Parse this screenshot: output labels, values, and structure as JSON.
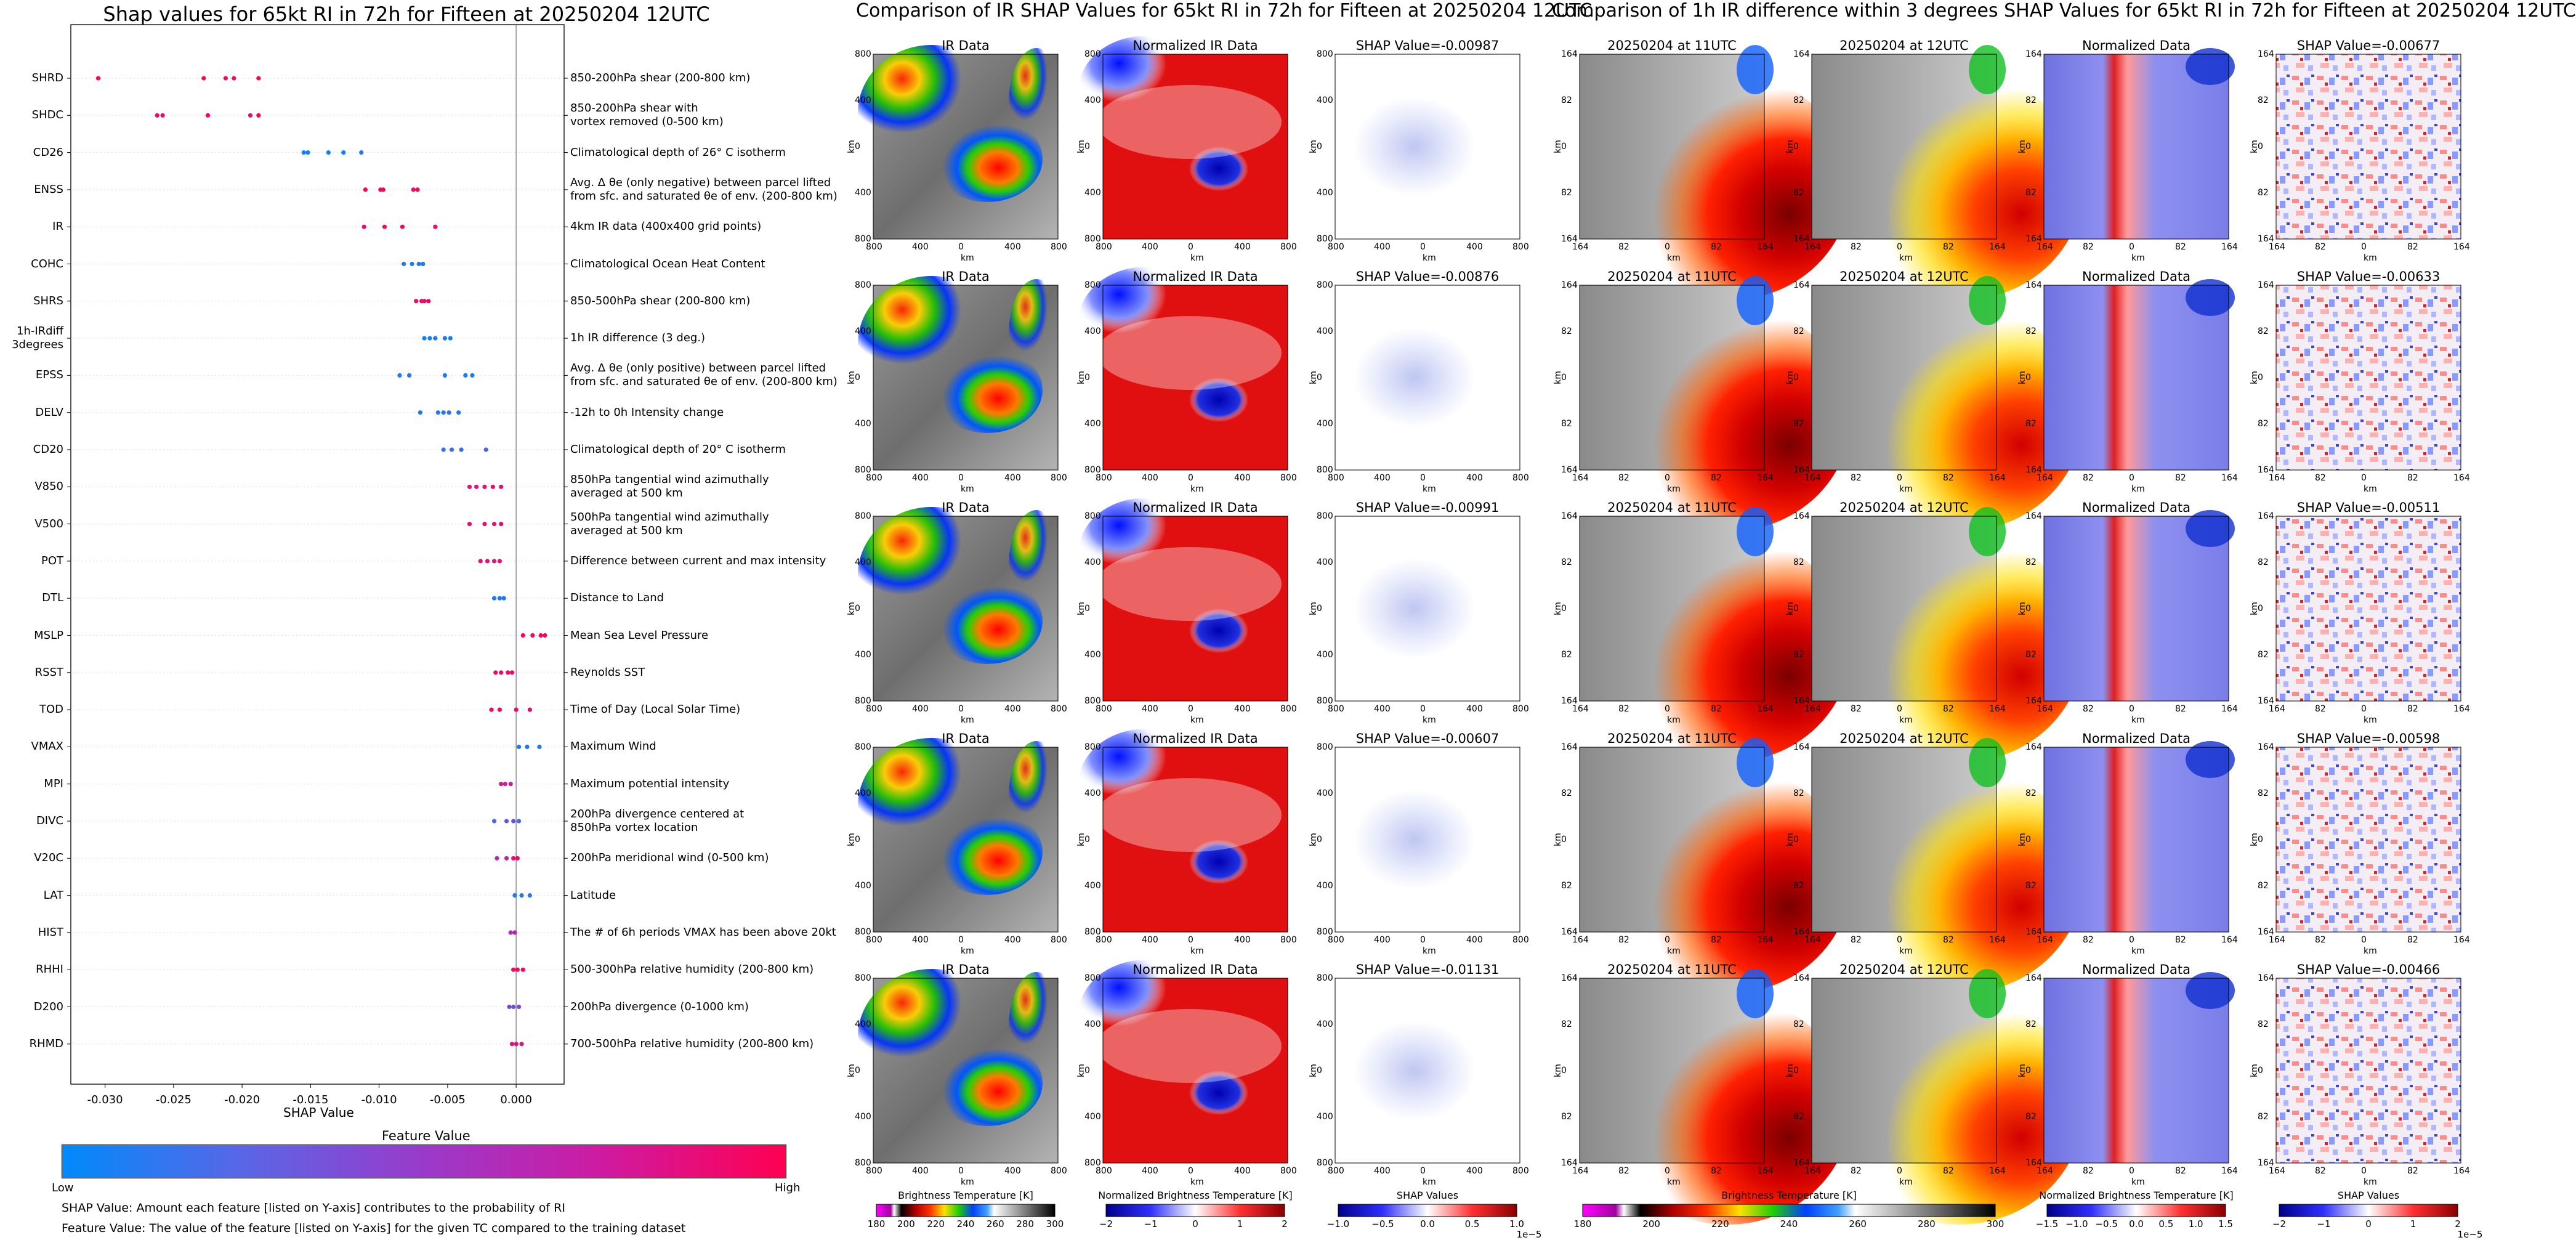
{
  "shap_panel": {
    "title": "Shap values for 65kt RI in 72h for Fifteen at 20250204 12UTC",
    "xlabel": "SHAP Value",
    "feature_value_title": "Feature Value",
    "low_label": "Low",
    "high_label": "High",
    "note_shap": "SHAP Value: Amount each feature [listed on Y-axis] contributes to the probability of RI",
    "note_feature": "Feature Value: The value of the feature [listed on Y-axis] for the given TC compared to the training dataset",
    "colors": {
      "low": "#008afa",
      "mid": "#9a3aca",
      "high": "#ff0052"
    }
  },
  "chart_data": [
    {
      "type": "scatter",
      "title": "Shap values for 65kt RI in 72h for Fifteen at 20250204 12UTC",
      "xlabel": "SHAP Value",
      "xlim": [
        -0.0325,
        0.0035
      ],
      "xticks": [
        "-0.030",
        "-0.025",
        "-0.020",
        "-0.015",
        "-0.010",
        "-0.005",
        "0.000"
      ],
      "xtick_values": [
        -0.03,
        -0.025,
        -0.02,
        -0.015,
        -0.01,
        -0.005,
        0.0
      ],
      "features": [
        {
          "code": "SHRD",
          "desc": [
            "850-200hPa shear (200-800 km)"
          ],
          "points": [
            [
              -0.0305,
              0.98
            ],
            [
              -0.0228,
              0.95
            ],
            [
              -0.0212,
              0.92
            ],
            [
              -0.0206,
              0.9
            ],
            [
              -0.0188,
              0.96
            ]
          ]
        },
        {
          "code": "SHDC",
          "desc": [
            "850-200hPa shear with",
            "vortex removed (0-500 km)"
          ],
          "points": [
            [
              -0.0262,
              0.93
            ],
            [
              -0.0258,
              0.9
            ],
            [
              -0.0225,
              0.95
            ],
            [
              -0.0194,
              0.9
            ],
            [
              -0.0188,
              0.97
            ]
          ]
        },
        {
          "code": "CD26",
          "desc": [
            "Climatological depth of 26° C isotherm"
          ],
          "points": [
            [
              -0.0155,
              0.05
            ],
            [
              -0.0152,
              0.05
            ],
            [
              -0.0137,
              0.08
            ],
            [
              -0.0126,
              0.05
            ],
            [
              -0.0113,
              0.12
            ]
          ]
        },
        {
          "code": "ENSS",
          "desc": [
            "Avg. Δ θe (only negative) between parcel lifted",
            "from sfc. and saturated θe of env. (200-800 km)"
          ],
          "points": [
            [
              -0.011,
              0.95
            ],
            [
              -0.0099,
              0.92
            ],
            [
              -0.0097,
              0.95
            ],
            [
              -0.0075,
              0.9
            ],
            [
              -0.0072,
              0.93
            ]
          ]
        },
        {
          "code": "IR",
          "desc": [
            "4km IR data (400x400 grid points)"
          ],
          "points": [
            [
              -0.0111,
              0.9
            ],
            [
              -0.0096,
              0.92
            ],
            [
              -0.0083,
              0.95
            ],
            [
              -0.0059,
              0.92
            ]
          ]
        },
        {
          "code": "COHC",
          "desc": [
            "Climatological Ocean Heat Content"
          ],
          "points": [
            [
              -0.0082,
              0.12
            ],
            [
              -0.0076,
              0.1
            ],
            [
              -0.0071,
              0.12
            ],
            [
              -0.0068,
              0.1
            ]
          ]
        },
        {
          "code": "SHRS",
          "desc": [
            "850-500hPa shear (200-800 km)"
          ],
          "points": [
            [
              -0.0073,
              0.9
            ],
            [
              -0.0069,
              0.9
            ],
            [
              -0.0067,
              0.93
            ],
            [
              -0.0064,
              0.95
            ]
          ]
        },
        {
          "code": "1h-IRdiff\n3degrees",
          "desc": [
            "1h IR difference (3 deg.)"
          ],
          "points": [
            [
              -0.0067,
              0.05
            ],
            [
              -0.0063,
              0.05
            ],
            [
              -0.0059,
              0.08
            ],
            [
              -0.0052,
              0.1
            ],
            [
              -0.0048,
              0.05
            ]
          ]
        },
        {
          "code": "EPSS",
          "desc": [
            "Avg. Δ θe (only positive) between parcel lifted",
            "from sfc. and saturated θe of env. (200-800 km)"
          ],
          "points": [
            [
              -0.0085,
              0.1
            ],
            [
              -0.0078,
              0.12
            ],
            [
              -0.0052,
              0.1
            ],
            [
              -0.0037,
              0.08
            ],
            [
              -0.0032,
              0.1
            ]
          ]
        },
        {
          "code": "DELV",
          "desc": [
            "-12h to 0h Intensity change"
          ],
          "points": [
            [
              -0.007,
              0.1
            ],
            [
              -0.0057,
              0.1
            ],
            [
              -0.0053,
              0.12
            ],
            [
              -0.0049,
              0.15
            ],
            [
              -0.0042,
              0.1
            ]
          ]
        },
        {
          "code": "CD20",
          "desc": [
            "Climatological depth of 20° C isotherm"
          ],
          "points": [
            [
              -0.0053,
              0.15
            ],
            [
              -0.0047,
              0.2
            ],
            [
              -0.004,
              0.2
            ],
            [
              -0.0022,
              0.25
            ]
          ]
        },
        {
          "code": "V850",
          "desc": [
            "850hPa tangential wind azimuthally",
            "averaged at 500 km"
          ],
          "points": [
            [
              -0.0034,
              0.85
            ],
            [
              -0.0029,
              0.85
            ],
            [
              -0.0023,
              0.88
            ],
            [
              -0.0017,
              0.9
            ],
            [
              -0.0011,
              0.85
            ]
          ]
        },
        {
          "code": "V500",
          "desc": [
            "500hPa tangential wind azimuthally",
            "averaged at 500 km"
          ],
          "points": [
            [
              -0.0034,
              0.88
            ],
            [
              -0.0023,
              0.85
            ],
            [
              -0.0016,
              0.88
            ],
            [
              -0.0011,
              0.9
            ]
          ]
        },
        {
          "code": "POT",
          "desc": [
            "Difference between current and max intensity"
          ],
          "points": [
            [
              -0.0026,
              0.85
            ],
            [
              -0.0021,
              0.85
            ],
            [
              -0.0016,
              0.82
            ],
            [
              -0.0012,
              0.85
            ]
          ]
        },
        {
          "code": "DTL",
          "desc": [
            "Distance to Land"
          ],
          "points": [
            [
              -0.0016,
              0.1
            ],
            [
              -0.0012,
              0.1
            ],
            [
              -0.0009,
              0.1
            ]
          ]
        },
        {
          "code": "MSLP",
          "desc": [
            "Mean Sea Level Pressure"
          ],
          "points": [
            [
              0.0005,
              0.95
            ],
            [
              0.0012,
              0.95
            ],
            [
              0.0018,
              0.95
            ],
            [
              0.0021,
              0.95
            ]
          ]
        },
        {
          "code": "RSST",
          "desc": [
            "Reynolds SST"
          ],
          "points": [
            [
              -0.0015,
              0.9
            ],
            [
              -0.0011,
              0.9
            ],
            [
              -0.0006,
              0.9
            ],
            [
              -0.0003,
              0.92
            ]
          ]
        },
        {
          "code": "TOD",
          "desc": [
            "Time of Day (Local Solar Time)"
          ],
          "points": [
            [
              -0.0018,
              0.95
            ],
            [
              -0.0012,
              0.92
            ],
            [
              0.0,
              0.9
            ],
            [
              0.001,
              0.92
            ]
          ]
        },
        {
          "code": "VMAX",
          "desc": [
            "Maximum Wind"
          ],
          "points": [
            [
              0.0002,
              0.1
            ],
            [
              0.0008,
              0.1
            ],
            [
              0.0017,
              0.1
            ]
          ]
        },
        {
          "code": "MPI",
          "desc": [
            "Maximum potential intensity"
          ],
          "points": [
            [
              -0.0011,
              0.75
            ],
            [
              -0.0008,
              0.7
            ],
            [
              -0.0004,
              0.72
            ]
          ]
        },
        {
          "code": "DIVC",
          "desc": [
            "200hPa divergence centered at",
            "850hPa vortex location"
          ],
          "points": [
            [
              -0.0016,
              0.2
            ],
            [
              -0.0007,
              0.3
            ],
            [
              -0.0002,
              0.35
            ],
            [
              0.0002,
              0.2
            ]
          ]
        },
        {
          "code": "V20C",
          "desc": [
            "200hPa meridional wind (0-500 km)"
          ],
          "points": [
            [
              -0.0014,
              0.6
            ],
            [
              -0.0007,
              0.7
            ],
            [
              -0.0002,
              0.9
            ],
            [
              0.0001,
              0.92
            ]
          ]
        },
        {
          "code": "LAT",
          "desc": [
            "Latitude"
          ],
          "points": [
            [
              -0.0001,
              0.1
            ],
            [
              0.0004,
              0.1
            ],
            [
              0.001,
              0.15
            ]
          ]
        },
        {
          "code": "HIST",
          "desc": [
            "The # of 6h periods VMAX has been above 20kt"
          ],
          "points": [
            [
              -0.0004,
              0.6
            ],
            [
              -0.0001,
              0.65
            ]
          ]
        },
        {
          "code": "RHHI",
          "desc": [
            "500-300hPa relative humidity (200-800 km)"
          ],
          "points": [
            [
              -0.0002,
              0.95
            ],
            [
              0.0001,
              0.95
            ],
            [
              0.0005,
              0.95
            ]
          ]
        },
        {
          "code": "D200",
          "desc": [
            "200hPa divergence (0-1000 km)"
          ],
          "points": [
            [
              -0.0005,
              0.4
            ],
            [
              -0.0002,
              0.35
            ],
            [
              0.0002,
              0.45
            ]
          ]
        },
        {
          "code": "RHMD",
          "desc": [
            "700-500hPa relative humidity (200-800 km)"
          ],
          "points": [
            [
              -0.0003,
              0.8
            ],
            [
              0.0,
              0.85
            ],
            [
              0.0004,
              0.8
            ]
          ]
        }
      ]
    },
    {
      "type": "heatmap",
      "title": "Comparison of IR SHAP Values for 65kt RI in 72h for Fifteen at 20250204 12UTC",
      "columns": [
        "IR Data",
        "Normalized IR Data",
        "SHAP Value"
      ],
      "xticks": [
        "800",
        "400",
        "0",
        "400",
        "800"
      ],
      "yticks": [
        "800",
        "400",
        "0",
        "400",
        "800"
      ],
      "xlabel": "km",
      "ylabel": "km",
      "shap_values": [
        "-0.00987",
        "-0.00876",
        "-0.00991",
        "-0.00607",
        "-0.01131"
      ],
      "colorbars": [
        {
          "title": "Brightness Temperature [K]",
          "ticks": [
            "180",
            "200",
            "220",
            "240",
            "260",
            "280",
            "300"
          ]
        },
        {
          "title": "Normalized Brightness Temperature [K]",
          "ticks": [
            "−2",
            "−1",
            "0",
            "1",
            "2"
          ]
        },
        {
          "title": "SHAP Values",
          "ticks": [
            "−1.0",
            "−0.5",
            "0.0",
            "0.5",
            "1.0"
          ],
          "exponent": "1e−5"
        }
      ]
    },
    {
      "type": "heatmap",
      "title": "Comparison of 1h IR difference within 3 degrees SHAP Values for 65kt RI in 72h for Fifteen at 20250204 12UTC",
      "columns": [
        "20250204 at 11UTC",
        "20250204 at 12UTC",
        "Normalized Data",
        "SHAP Value"
      ],
      "xticks": [
        "164",
        "82",
        "0",
        "82",
        "164"
      ],
      "yticks": [
        "164",
        "82",
        "0",
        "82",
        "164"
      ],
      "xlabel": "km",
      "ylabel": "km",
      "shap_values": [
        "-0.00677",
        "-0.00633",
        "-0.00511",
        "-0.00598",
        "-0.00466"
      ],
      "colorbars": [
        {
          "title": "Brightness Temperature [K]",
          "ticks": [
            "180",
            "200",
            "220",
            "240",
            "260",
            "280",
            "300"
          ]
        },
        {
          "title": "Normalized Brightness Temperature [K]",
          "ticks": [
            "−1.5",
            "−1.0",
            "−0.5",
            "0.0",
            "0.5",
            "1.0",
            "1.5"
          ]
        },
        {
          "title": "SHAP Values",
          "ticks": [
            "−2",
            "−1",
            "0",
            "1",
            "2"
          ],
          "exponent": "1e−5"
        }
      ]
    }
  ],
  "mid_panel": {
    "title": "Comparison of IR SHAP Values for 65kt RI in 72h for Fifteen at 20250204 12UTC",
    "col_ir": "IR Data",
    "col_norm": "Normalized IR Data",
    "shap_prefix": "SHAP Value=",
    "cb_titles": [
      "Brightness Temperature [K]",
      "Normalized Brightness Temperature [K]",
      "SHAP Values"
    ]
  },
  "right_panel": {
    "title": "Comparison of 1h IR difference within 3 degrees SHAP Values for 65kt RI in 72h for Fifteen at 20250204 12UTC",
    "col_11": "20250204 at 11UTC",
    "col_12": "20250204 at 12UTC",
    "col_norm": "Normalized Data",
    "shap_prefix": "SHAP Value=",
    "cb_titles": [
      "Brightness Temperature [K]",
      "Normalized Brightness Temperature [K]",
      "SHAP Values"
    ]
  }
}
